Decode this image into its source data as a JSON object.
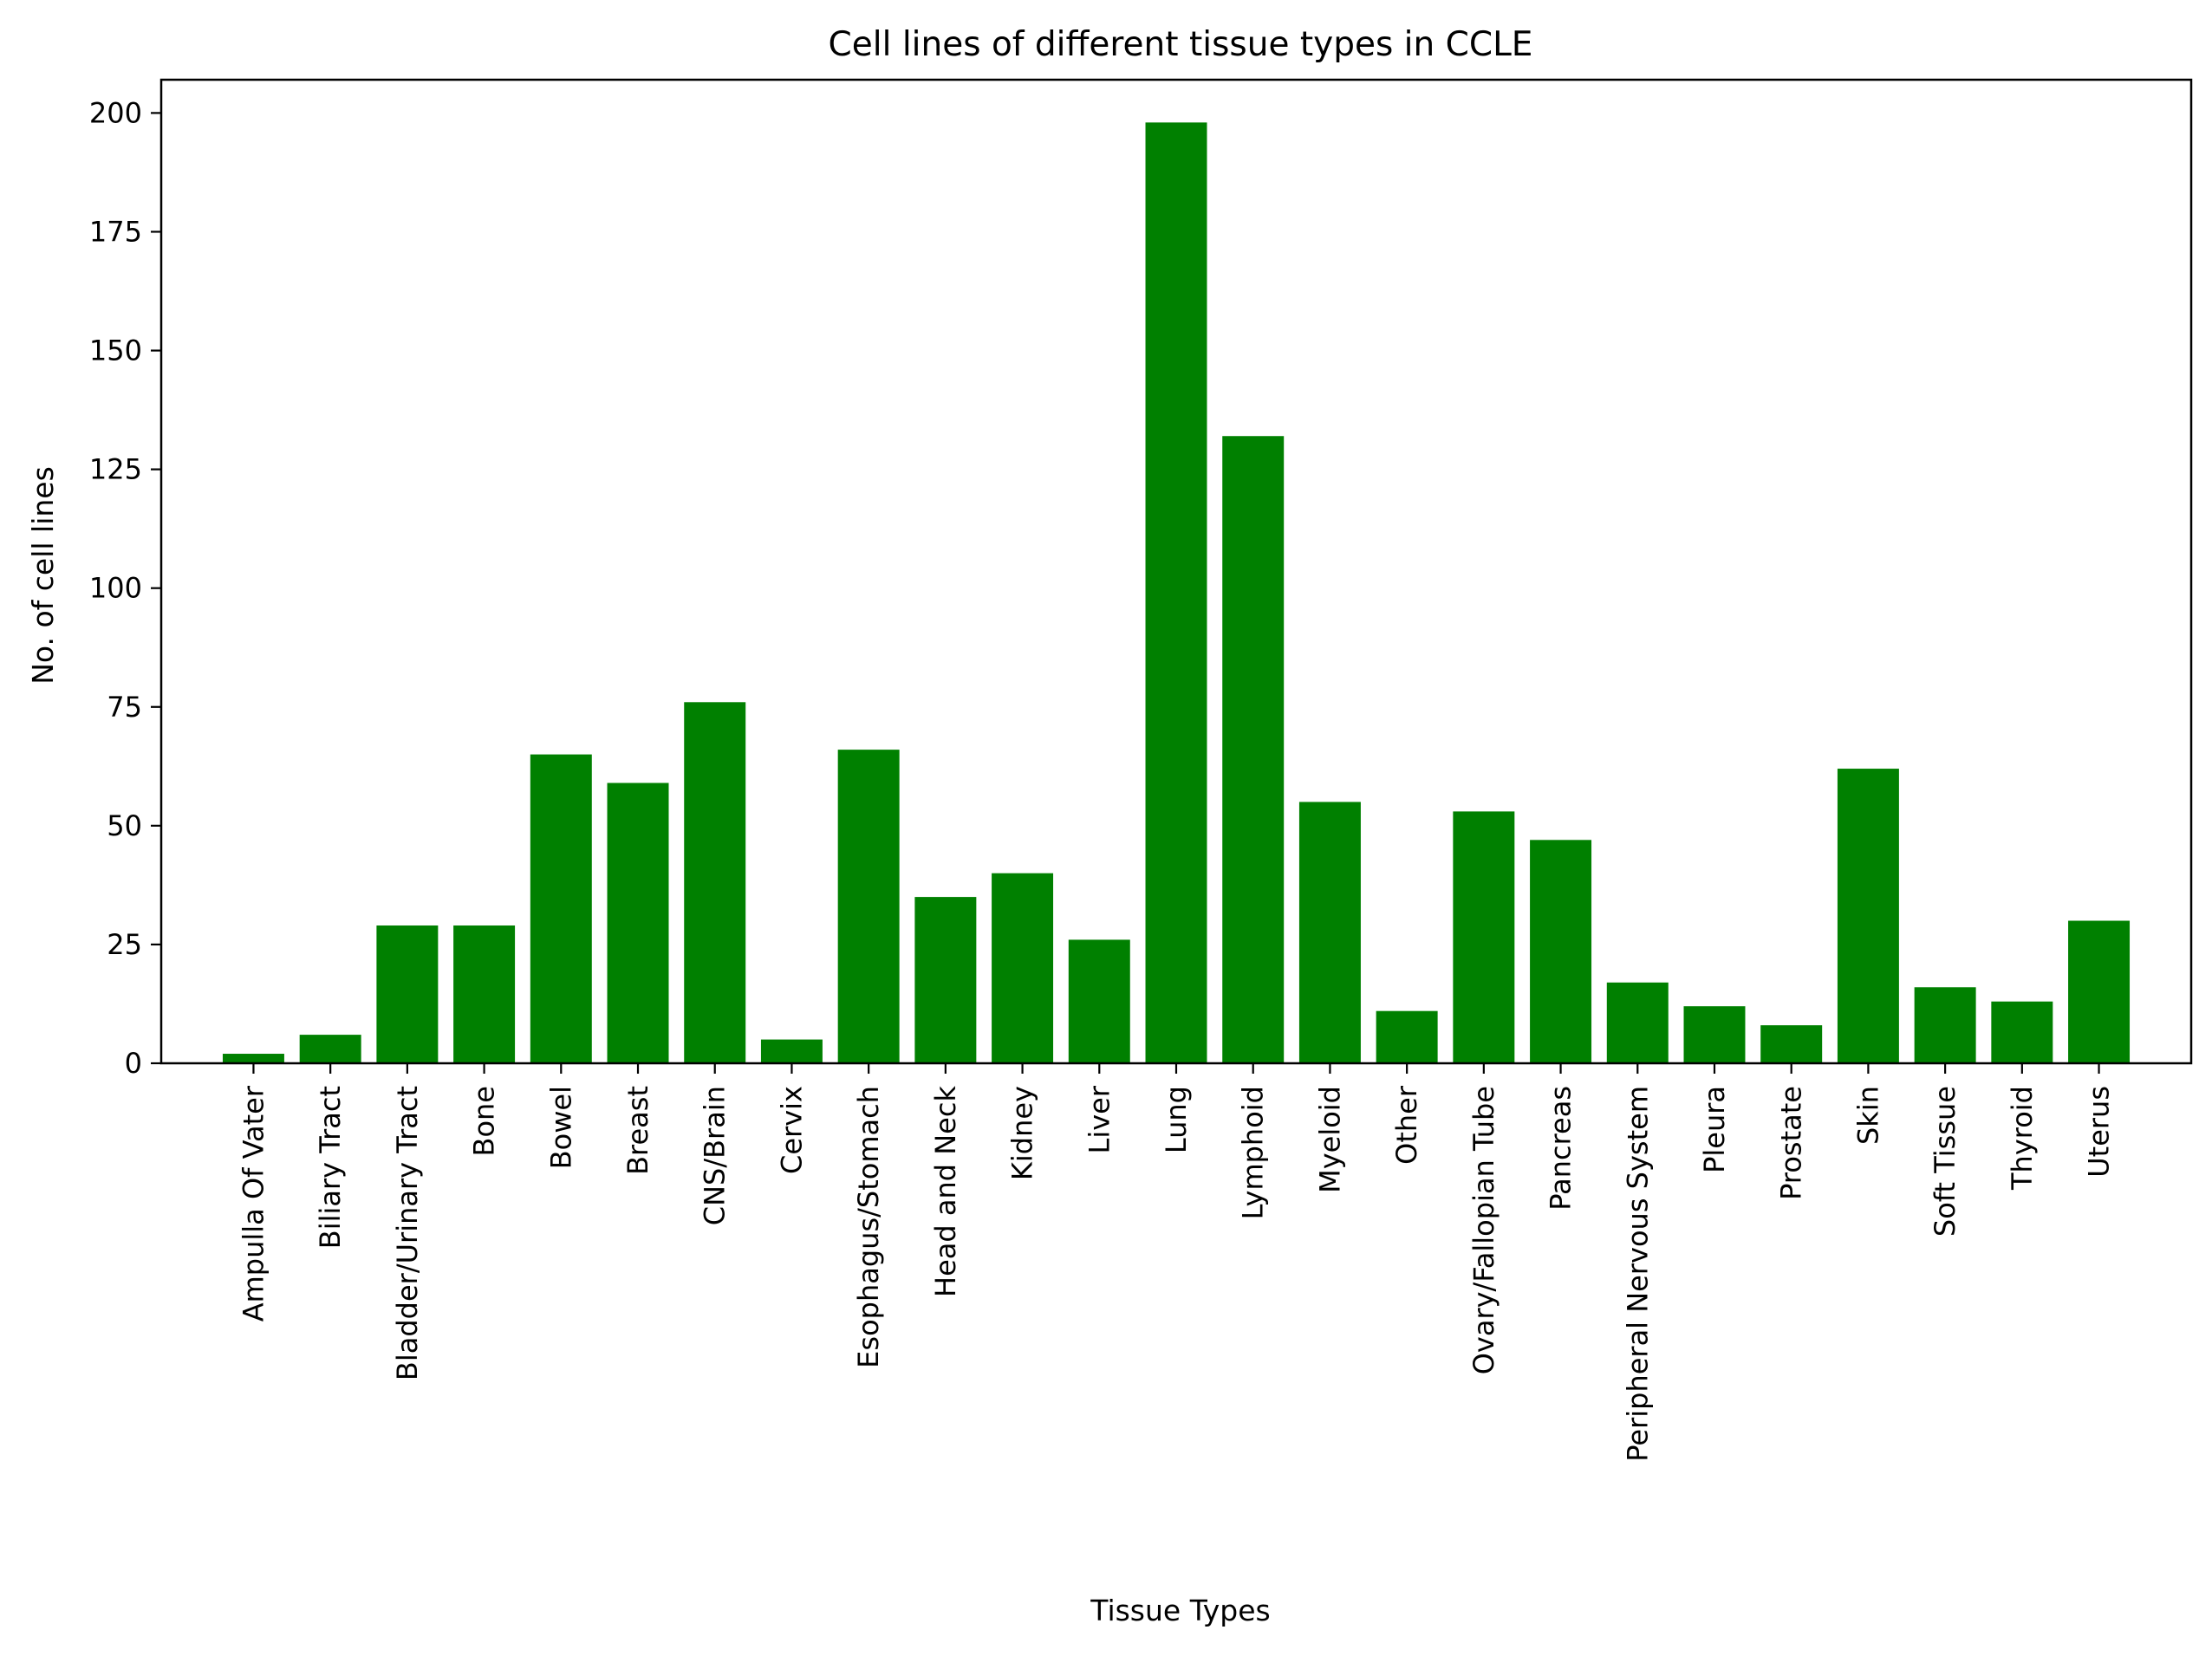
{
  "chart_data": {
    "type": "bar",
    "title": "Cell lines of different tissue types in CCLE",
    "xlabel": "Tissue Types",
    "ylabel": "No. of cell lines",
    "ylim": [
      0,
      207
    ],
    "yticks": [
      0,
      25,
      50,
      75,
      100,
      125,
      150,
      175,
      200
    ],
    "bar_color": "#008000",
    "grid": false,
    "legend": "none",
    "categories": [
      "Ampulla Of Vater",
      "Biliary Tract",
      "Bladder/Urinary Tract",
      "Bone",
      "Bowel",
      "Breast",
      "CNS/Brain",
      "Cervix",
      "Esophagus/Stomach",
      "Head and Neck",
      "Kidney",
      "Liver",
      "Lung",
      "Lymphoid",
      "Myeloid",
      "Other",
      "Ovary/Fallopian Tube",
      "Pancreas",
      "Peripheral Nervous System",
      "Pleura",
      "Prostate",
      "Skin",
      "Soft Tissue",
      "Thyroid",
      "Uterus"
    ],
    "values": [
      2,
      6,
      29,
      29,
      65,
      59,
      76,
      5,
      66,
      35,
      40,
      26,
      198,
      132,
      55,
      11,
      53,
      47,
      17,
      12,
      8,
      62,
      16,
      13,
      30
    ]
  }
}
